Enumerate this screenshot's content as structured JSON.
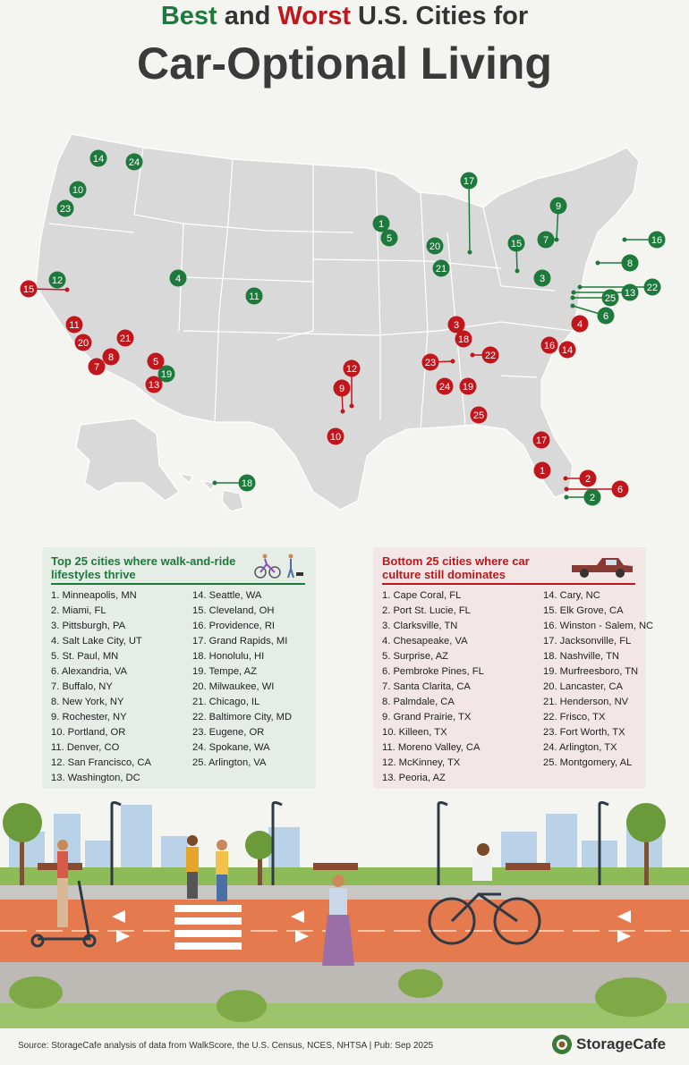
{
  "title": {
    "best": "Best",
    "and": " and ",
    "worst": "Worst",
    "rest": " U.S. Cities for",
    "line2": "Car-Optional Living"
  },
  "colors": {
    "best": "#1e7a3c",
    "worst": "#c0161c",
    "map": "#d9d9d9"
  },
  "best_list": {
    "heading": "Top 25 cities where walk-and-ride lifestyles thrive",
    "col1": [
      "1. Minneapolis, MN",
      "2. Miami, FL",
      "3. Pittsburgh, PA",
      "4. Salt Lake City, UT",
      "5. St. Paul, MN",
      "6. Alexandria, VA",
      "7. Buffalo, NY",
      "8. New York, NY",
      "9. Rochester, NY",
      "10. Portland, OR",
      "11. Denver, CO",
      "12. San Francisco, CA",
      "13. Washington, DC"
    ],
    "col2": [
      "14. Seattle, WA",
      "15. Cleveland, OH",
      "16. Providence, RI",
      "17. Grand Rapids, MI",
      "18. Honolulu, HI",
      "19. Tempe, AZ",
      "20. Milwaukee, WI",
      "21. Chicago, IL",
      "22. Baltimore City, MD",
      "23. Eugene, OR",
      "24. Spokane, WA",
      "25. Arlington, VA"
    ]
  },
  "worst_list": {
    "heading": "Bottom 25 cities where car culture still dominates",
    "col1": [
      "1. Cape Coral, FL",
      "2. Port St. Lucie, FL",
      "3. Clarksville, TN",
      "4. Chesapeake, VA",
      "5. Surprise, AZ",
      "6. Pembroke Pines, FL",
      "7. Santa Clarita, CA",
      "8. Palmdale, CA",
      "9. Grand Prairie, TX",
      "10. Killeen, TX",
      "11. Moreno Valley, CA",
      "12. McKinney, TX",
      "13. Peoria, AZ"
    ],
    "col2": [
      "14. Cary, NC",
      "15. Elk Grove, CA",
      "16. Winston - Salem, NC",
      "17. Jacksonville, FL",
      "18. Nashville, TN",
      "19. Murfreesboro, TN",
      "20. Lancaster, CA",
      "21. Henderson, NV",
      "22. Frisco, TX",
      "23. Fort Worth, TX",
      "24. Arlington, TX",
      "25. Montgomery, AL"
    ]
  },
  "map_markers": {
    "best": [
      {
        "n": "14",
        "c": "Seattle, WA"
      },
      {
        "n": "24",
        "c": "Spokane, WA"
      },
      {
        "n": "10",
        "c": "Portland, OR"
      },
      {
        "n": "23",
        "c": "Eugene, OR"
      },
      {
        "n": "12",
        "c": "San Francisco, CA"
      },
      {
        "n": "4",
        "c": "Salt Lake City, UT"
      },
      {
        "n": "11",
        "c": "Denver, CO"
      },
      {
        "n": "19",
        "c": "Tempe, AZ"
      },
      {
        "n": "1",
        "c": "Minneapolis, MN"
      },
      {
        "n": "5",
        "c": "St. Paul, MN"
      },
      {
        "n": "20",
        "c": "Milwaukee, WI"
      },
      {
        "n": "21",
        "c": "Chicago, IL"
      },
      {
        "n": "17",
        "c": "Grand Rapids, MI"
      },
      {
        "n": "15",
        "c": "Cleveland, OH"
      },
      {
        "n": "3",
        "c": "Pittsburgh, PA"
      },
      {
        "n": "9",
        "c": "Rochester, NY"
      },
      {
        "n": "7",
        "c": "Buffalo, NY"
      },
      {
        "n": "16",
        "c": "Providence, RI"
      },
      {
        "n": "8",
        "c": "New York, NY"
      },
      {
        "n": "22",
        "c": "Baltimore City, MD"
      },
      {
        "n": "13",
        "c": "Washington, DC"
      },
      {
        "n": "25",
        "c": "Arlington, VA"
      },
      {
        "n": "6",
        "c": "Alexandria, VA"
      },
      {
        "n": "2",
        "c": "Miami, FL"
      },
      {
        "n": "18",
        "c": "Honolulu, HI"
      }
    ],
    "worst": [
      {
        "n": "15",
        "c": "Elk Grove, CA"
      },
      {
        "n": "11",
        "c": "Moreno Valley, CA"
      },
      {
        "n": "20",
        "c": "Lancaster, CA"
      },
      {
        "n": "21",
        "c": "Henderson, NV"
      },
      {
        "n": "7",
        "c": "Santa Clarita, CA"
      },
      {
        "n": "8",
        "c": "Palmdale, CA"
      },
      {
        "n": "5",
        "c": "Surprise, AZ"
      },
      {
        "n": "13",
        "c": "Peoria, AZ"
      },
      {
        "n": "12",
        "c": "McKinney, TX"
      },
      {
        "n": "9",
        "c": "Grand Prairie, TX"
      },
      {
        "n": "10",
        "c": "Killeen, TX"
      },
      {
        "n": "3",
        "c": "Clarksville, TN"
      },
      {
        "n": "18",
        "c": "Nashville, TN"
      },
      {
        "n": "23",
        "c": "Fort Worth, TX"
      },
      {
        "n": "22",
        "c": "Frisco, TX"
      },
      {
        "n": "24",
        "c": "Arlington, TX"
      },
      {
        "n": "19",
        "c": "Murfreesboro, TN"
      },
      {
        "n": "25",
        "c": "Montgomery, AL"
      },
      {
        "n": "4",
        "c": "Chesapeake, VA"
      },
      {
        "n": "16",
        "c": "Winston - Salem, NC"
      },
      {
        "n": "14",
        "c": "Cary, NC"
      },
      {
        "n": "17",
        "c": "Jacksonville, FL"
      },
      {
        "n": "1",
        "c": "Cape Coral, FL"
      },
      {
        "n": "2",
        "c": "Port St. Lucie, FL"
      },
      {
        "n": "6",
        "c": "Pembroke Pines, FL"
      }
    ]
  },
  "footer": {
    "source": "Source: StorageCafe analysis of data from WalkScore, the U.S. Census, NCES, NHTSA | Pub: Sep 2025",
    "brand": "StorageCafe"
  }
}
